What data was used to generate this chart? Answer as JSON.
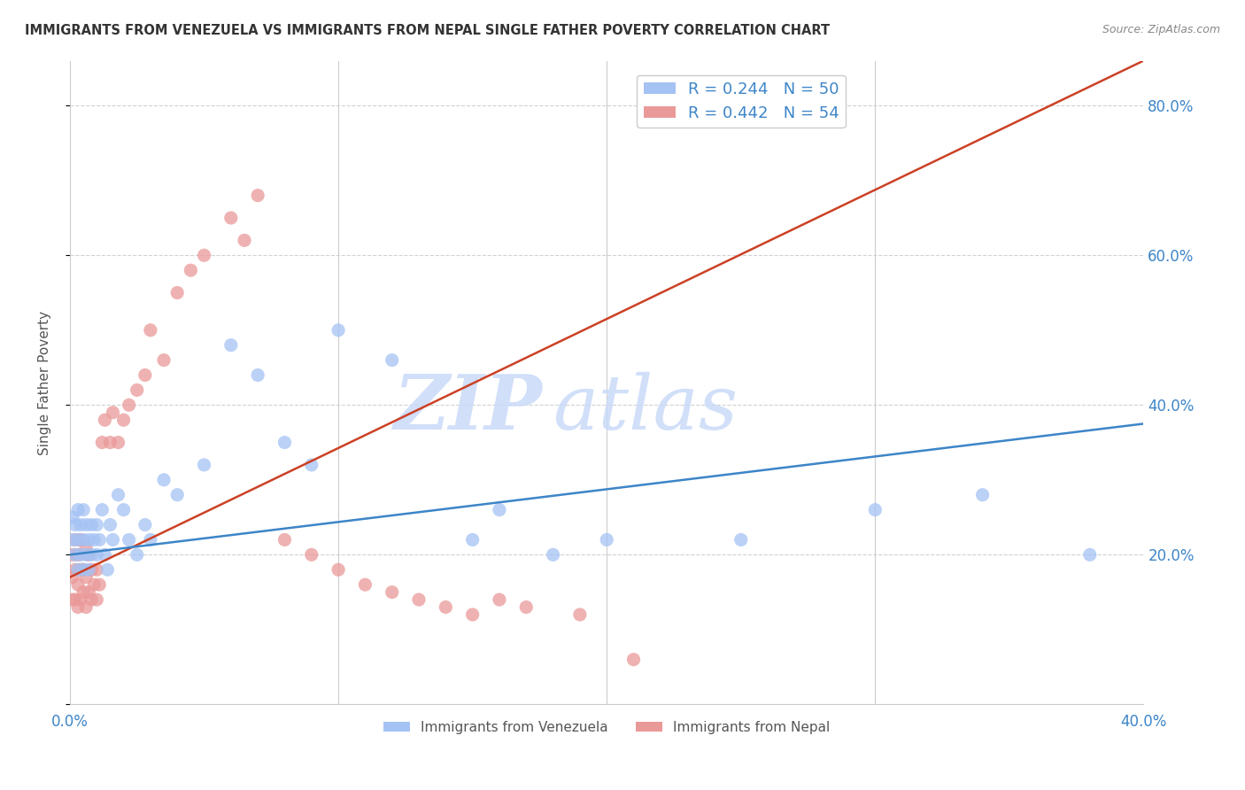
{
  "title": "IMMIGRANTS FROM VENEZUELA VS IMMIGRANTS FROM NEPAL SINGLE FATHER POVERTY CORRELATION CHART",
  "source": "Source: ZipAtlas.com",
  "ylabel": "Single Father Poverty",
  "xlim": [
    0.0,
    0.4
  ],
  "ylim": [
    0.0,
    0.86
  ],
  "xticks": [
    0.0,
    0.1,
    0.2,
    0.3,
    0.4
  ],
  "xtick_labels": [
    "0.0%",
    "",
    "",
    "",
    "40.0%"
  ],
  "yticks": [
    0.0,
    0.2,
    0.4,
    0.6,
    0.8
  ],
  "ytick_labels_right": [
    "",
    "20.0%",
    "40.0%",
    "60.0%",
    "80.0%"
  ],
  "legend_blue_R": "R = 0.244",
  "legend_blue_N": "N = 50",
  "legend_pink_R": "R = 0.442",
  "legend_pink_N": "N = 54",
  "blue_color": "#a4c2f4",
  "pink_color": "#ea9999",
  "blue_line_color": "#3d85c8",
  "pink_line_color": "#cc4125",
  "watermark_zip": "ZIP",
  "watermark_atlas": "atlas",
  "legend_label_blue": "Immigrants from Venezuela",
  "legend_label_pink": "Immigrants from Nepal",
  "blue_scatter_x": [
    0.001,
    0.001,
    0.002,
    0.002,
    0.003,
    0.003,
    0.003,
    0.004,
    0.004,
    0.005,
    0.005,
    0.005,
    0.006,
    0.006,
    0.007,
    0.007,
    0.008,
    0.008,
    0.009,
    0.01,
    0.01,
    0.011,
    0.012,
    0.013,
    0.014,
    0.015,
    0.016,
    0.018,
    0.02,
    0.022,
    0.025,
    0.028,
    0.03,
    0.035,
    0.04,
    0.05,
    0.06,
    0.07,
    0.08,
    0.09,
    0.1,
    0.12,
    0.15,
    0.16,
    0.18,
    0.2,
    0.25,
    0.3,
    0.34,
    0.38
  ],
  "blue_scatter_y": [
    0.22,
    0.25,
    0.2,
    0.24,
    0.18,
    0.22,
    0.26,
    0.2,
    0.24,
    0.18,
    0.22,
    0.26,
    0.2,
    0.24,
    0.22,
    0.18,
    0.2,
    0.24,
    0.22,
    0.2,
    0.24,
    0.22,
    0.26,
    0.2,
    0.18,
    0.24,
    0.22,
    0.28,
    0.26,
    0.22,
    0.2,
    0.24,
    0.22,
    0.3,
    0.28,
    0.32,
    0.48,
    0.44,
    0.35,
    0.32,
    0.5,
    0.46,
    0.22,
    0.26,
    0.2,
    0.22,
    0.22,
    0.26,
    0.28,
    0.2
  ],
  "pink_scatter_x": [
    0.001,
    0.001,
    0.001,
    0.002,
    0.002,
    0.002,
    0.003,
    0.003,
    0.003,
    0.004,
    0.004,
    0.004,
    0.005,
    0.005,
    0.006,
    0.006,
    0.006,
    0.007,
    0.007,
    0.008,
    0.008,
    0.009,
    0.01,
    0.01,
    0.011,
    0.012,
    0.013,
    0.015,
    0.016,
    0.018,
    0.02,
    0.022,
    0.025,
    0.028,
    0.03,
    0.035,
    0.04,
    0.045,
    0.05,
    0.06,
    0.065,
    0.07,
    0.08,
    0.09,
    0.1,
    0.11,
    0.12,
    0.13,
    0.14,
    0.15,
    0.16,
    0.17,
    0.19,
    0.21
  ],
  "pink_scatter_y": [
    0.14,
    0.17,
    0.2,
    0.14,
    0.18,
    0.22,
    0.13,
    0.16,
    0.2,
    0.14,
    0.18,
    0.22,
    0.15,
    0.18,
    0.13,
    0.17,
    0.21,
    0.15,
    0.2,
    0.14,
    0.18,
    0.16,
    0.14,
    0.18,
    0.16,
    0.35,
    0.38,
    0.35,
    0.39,
    0.35,
    0.38,
    0.4,
    0.42,
    0.44,
    0.5,
    0.46,
    0.55,
    0.58,
    0.6,
    0.65,
    0.62,
    0.68,
    0.22,
    0.2,
    0.18,
    0.16,
    0.15,
    0.14,
    0.13,
    0.12,
    0.14,
    0.13,
    0.12,
    0.06
  ],
  "blue_line_x": [
    0.0,
    0.4
  ],
  "blue_line_y": [
    0.2,
    0.375
  ],
  "pink_line_x": [
    0.0,
    0.4
  ],
  "pink_line_y": [
    0.17,
    0.86
  ],
  "background_color": "#ffffff",
  "grid_color": "#cccccc",
  "title_color": "#333333",
  "axis_label_color": "#555555",
  "right_tick_color": "#3d85c8",
  "bottom_tick_color": "#3d85c8",
  "watermark_color": "#c9daf8",
  "legend_text_color": "#3d85c8"
}
